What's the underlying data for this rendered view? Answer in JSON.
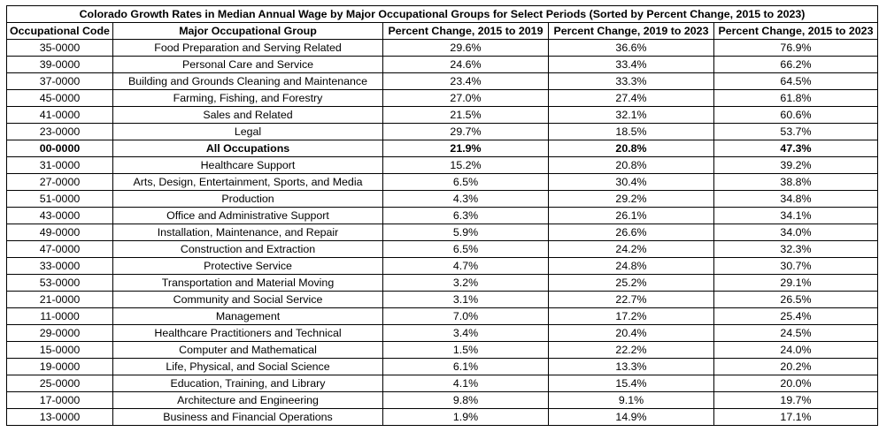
{
  "title": "Colorado Growth Rates in Median Annual Wage by Major Occupational Groups for Select Periods (Sorted by Percent Change, 2015 to 2023)",
  "headers": [
    "Occupational Code",
    "Major Occupational Group",
    "Percent Change, 2015 to 2019",
    "Percent Change, 2019 to 2023",
    "Percent Change, 2015 to 2023"
  ],
  "rows": [
    {
      "code": "35-0000",
      "group": "Food Preparation and Serving Related",
      "p1": "29.6%",
      "p2": "36.6%",
      "p3": "76.9%"
    },
    {
      "code": "39-0000",
      "group": "Personal Care and Service",
      "p1": "24.6%",
      "p2": "33.4%",
      "p3": "66.2%"
    },
    {
      "code": "37-0000",
      "group": "Building and Grounds Cleaning and Maintenance",
      "p1": "23.4%",
      "p2": "33.3%",
      "p3": "64.5%"
    },
    {
      "code": "45-0000",
      "group": "Farming, Fishing, and Forestry",
      "p1": "27.0%",
      "p2": "27.4%",
      "p3": "61.8%"
    },
    {
      "code": "41-0000",
      "group": "Sales and Related",
      "p1": "21.5%",
      "p2": "32.1%",
      "p3": "60.6%"
    },
    {
      "code": "23-0000",
      "group": "Legal",
      "p1": "29.7%",
      "p2": "18.5%",
      "p3": "53.7%"
    },
    {
      "code": "00-0000",
      "group": "All Occupations",
      "p1": "21.9%",
      "p2": "20.8%",
      "p3": "47.3%",
      "bold": true
    },
    {
      "code": "31-0000",
      "group": "Healthcare Support",
      "p1": "15.2%",
      "p2": "20.8%",
      "p3": "39.2%"
    },
    {
      "code": "27-0000",
      "group": "Arts, Design, Entertainment, Sports, and Media",
      "p1": "6.5%",
      "p2": "30.4%",
      "p3": "38.8%"
    },
    {
      "code": "51-0000",
      "group": "Production",
      "p1": "4.3%",
      "p2": "29.2%",
      "p3": "34.8%"
    },
    {
      "code": "43-0000",
      "group": "Office and Administrative Support",
      "p1": "6.3%",
      "p2": "26.1%",
      "p3": "34.1%"
    },
    {
      "code": "49-0000",
      "group": "Installation, Maintenance, and Repair",
      "p1": "5.9%",
      "p2": "26.6%",
      "p3": "34.0%"
    },
    {
      "code": "47-0000",
      "group": "Construction and Extraction",
      "p1": "6.5%",
      "p2": "24.2%",
      "p3": "32.3%"
    },
    {
      "code": "33-0000",
      "group": "Protective Service",
      "p1": "4.7%",
      "p2": "24.8%",
      "p3": "30.7%"
    },
    {
      "code": "53-0000",
      "group": "Transportation and Material Moving",
      "p1": "3.2%",
      "p2": "25.2%",
      "p3": "29.1%"
    },
    {
      "code": "21-0000",
      "group": "Community and Social Service",
      "p1": "3.1%",
      "p2": "22.7%",
      "p3": "26.5%"
    },
    {
      "code": "11-0000",
      "group": "Management",
      "p1": "7.0%",
      "p2": "17.2%",
      "p3": "25.4%"
    },
    {
      "code": "29-0000",
      "group": "Healthcare Practitioners and Technical",
      "p1": "3.4%",
      "p2": "20.4%",
      "p3": "24.5%"
    },
    {
      "code": "15-0000",
      "group": "Computer and Mathematical",
      "p1": "1.5%",
      "p2": "22.2%",
      "p3": "24.0%"
    },
    {
      "code": "19-0000",
      "group": "Life, Physical, and Social Science",
      "p1": "6.1%",
      "p2": "13.3%",
      "p3": "20.2%"
    },
    {
      "code": "25-0000",
      "group": "Education, Training, and Library",
      "p1": "4.1%",
      "p2": "15.4%",
      "p3": "20.0%"
    },
    {
      "code": "17-0000",
      "group": "Architecture and Engineering",
      "p1": "9.8%",
      "p2": "9.1%",
      "p3": "19.7%"
    },
    {
      "code": "13-0000",
      "group": "Business and Financial Operations",
      "p1": "1.9%",
      "p2": "14.9%",
      "p3": "17.1%"
    }
  ]
}
